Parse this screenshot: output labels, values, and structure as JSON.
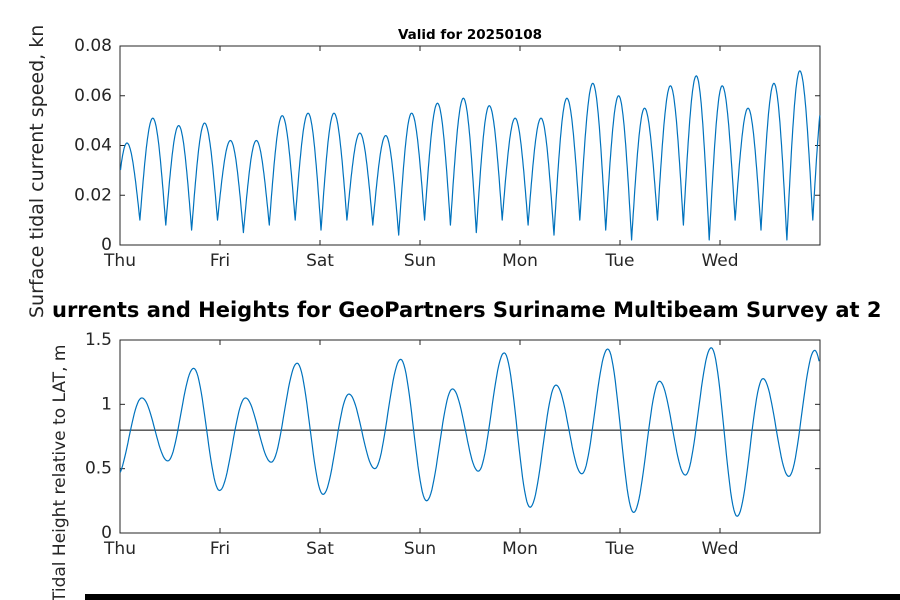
{
  "figure": {
    "suptitle": "urrents and Heights for GeoPartners Suriname Multibeam Survey at 2",
    "background": "#ffffff",
    "bottom_bar_color": "#000000"
  },
  "chart_data": [
    {
      "type": "line",
      "title": "Valid for 20250108",
      "ylabel": "Surface tidal current speed, kn",
      "xlabel": "",
      "xticklabels": [
        "Thu",
        "Fri",
        "Sat",
        "Sun",
        "Mon",
        "Tue",
        "Wed"
      ],
      "xlim_days": [
        0,
        7
      ],
      "yticks": [
        0,
        0.02,
        0.04,
        0.06,
        0.08
      ],
      "ytick_labels": [
        "0",
        "0.02",
        "0.04",
        "0.06",
        "0.08"
      ],
      "ylim": [
        0,
        0.08
      ],
      "grid": false,
      "box": true,
      "line_color": "#0072BD",
      "axis_color": "#262626",
      "interp": "abssin",
      "series_note": "semidiurnal tidal current speed; alternating slack minima and flood/ebb peak speeds, t in days from Thu 00:00",
      "extremes": {
        "t0": -0.06,
        "dt": 0.1294,
        "values": [
          0.004,
          0.041,
          0.01,
          0.051,
          0.008,
          0.048,
          0.006,
          0.049,
          0.01,
          0.042,
          0.005,
          0.042,
          0.008,
          0.052,
          0.01,
          0.053,
          0.006,
          0.053,
          0.01,
          0.045,
          0.008,
          0.044,
          0.004,
          0.053,
          0.01,
          0.057,
          0.008,
          0.059,
          0.005,
          0.056,
          0.01,
          0.051,
          0.008,
          0.051,
          0.004,
          0.059,
          0.01,
          0.065,
          0.006,
          0.06,
          0.002,
          0.055,
          0.01,
          0.064,
          0.008,
          0.068,
          0.002,
          0.064,
          0.01,
          0.055,
          0.006,
          0.065,
          0.002,
          0.07,
          0.01,
          0.066,
          0.006
        ]
      }
    },
    {
      "type": "line",
      "title": "",
      "ylabel": "Tidal Height relative to LAT, m",
      "xlabel": "",
      "xticklabels": [
        "Thu",
        "Fri",
        "Sat",
        "Sun",
        "Mon",
        "Tue",
        "Wed"
      ],
      "xlim_days": [
        0,
        7
      ],
      "yticks": [
        0,
        0.5,
        1,
        1.5
      ],
      "ytick_labels": [
        "0",
        "0.5",
        "1",
        "1.5"
      ],
      "ylim": [
        0,
        1.5
      ],
      "grid": false,
      "box": true,
      "line_color": "#0072BD",
      "axis_color": "#262626",
      "interp": "cos",
      "hline": {
        "y": 0.8,
        "color": "#000000"
      },
      "series_note": "semidiurnal tidal height; alternating low and high waters, t in days from Thu 00:00",
      "extremes": {
        "t0": -0.04,
        "dt": 0.2588,
        "values": [
          0.43,
          1.05,
          0.56,
          1.28,
          0.33,
          1.05,
          0.55,
          1.32,
          0.3,
          1.08,
          0.5,
          1.35,
          0.25,
          1.12,
          0.48,
          1.4,
          0.2,
          1.15,
          0.46,
          1.43,
          0.16,
          1.18,
          0.45,
          1.44,
          0.13,
          1.2,
          0.44,
          1.42,
          0.15
        ]
      }
    }
  ]
}
